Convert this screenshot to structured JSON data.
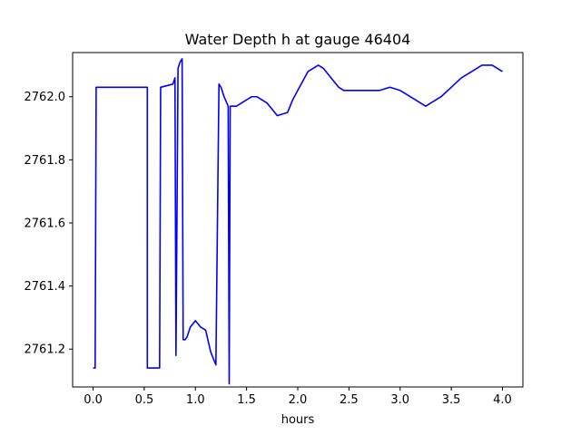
{
  "chart_data": {
    "type": "line",
    "title": "Water Depth h at gauge 46404",
    "xlabel": "hours",
    "ylabel": "",
    "xlim": [
      -0.2,
      4.2
    ],
    "ylim": [
      2761.08,
      2762.14
    ],
    "xticks": [
      0.0,
      0.5,
      1.0,
      1.5,
      2.0,
      2.5,
      3.0,
      3.5,
      4.0
    ],
    "xtick_labels": [
      "0.0",
      "0.5",
      "1.0",
      "1.5",
      "2.0",
      "2.5",
      "3.0",
      "3.5",
      "4.0"
    ],
    "yticks": [
      2761.2,
      2761.4,
      2761.6,
      2761.8,
      2762.0
    ],
    "ytick_labels": [
      "2761.2",
      "2761.4",
      "2761.6",
      "2761.8",
      "2762.0"
    ],
    "grid": false,
    "series": [
      {
        "color": "#0000ff",
        "x": [
          0.0,
          0.02,
          0.03,
          0.53,
          0.53,
          0.65,
          0.66,
          0.78,
          0.8,
          0.81,
          0.83,
          0.85,
          0.87,
          0.88,
          0.9,
          0.92,
          0.95,
          1.0,
          1.05,
          1.1,
          1.15,
          1.2,
          1.23,
          1.25,
          1.28,
          1.32,
          1.33,
          1.34,
          1.36,
          1.4,
          1.45,
          1.5,
          1.55,
          1.6,
          1.7,
          1.75,
          1.8,
          1.9,
          1.95,
          2.0,
          2.1,
          2.15,
          2.2,
          2.25,
          2.3,
          2.35,
          2.4,
          2.45,
          2.5,
          2.6,
          2.7,
          2.8,
          2.9,
          3.0,
          3.1,
          3.2,
          3.25,
          3.3,
          3.4,
          3.5,
          3.6,
          3.7,
          3.8,
          3.85,
          3.9,
          3.95,
          4.0
        ],
        "y": [
          2761.14,
          2761.14,
          2762.03,
          2762.03,
          2761.14,
          2761.14,
          2762.03,
          2762.04,
          2762.06,
          2761.18,
          2762.09,
          2762.11,
          2762.12,
          2761.23,
          2761.23,
          2761.24,
          2761.27,
          2761.29,
          2761.27,
          2761.26,
          2761.19,
          2761.15,
          2762.04,
          2762.03,
          2762.0,
          2761.97,
          2761.09,
          2761.97,
          2761.97,
          2761.97,
          2761.98,
          2761.99,
          2762.0,
          2762.0,
          2761.98,
          2761.96,
          2761.94,
          2761.95,
          2761.99,
          2762.02,
          2762.08,
          2762.09,
          2762.1,
          2762.09,
          2762.07,
          2762.05,
          2762.03,
          2762.02,
          2762.02,
          2762.02,
          2762.02,
          2762.02,
          2762.03,
          2762.02,
          2762.0,
          2761.98,
          2761.97,
          2761.98,
          2762.0,
          2762.03,
          2762.06,
          2762.08,
          2762.1,
          2762.1,
          2762.1,
          2762.09,
          2762.08
        ]
      }
    ]
  }
}
